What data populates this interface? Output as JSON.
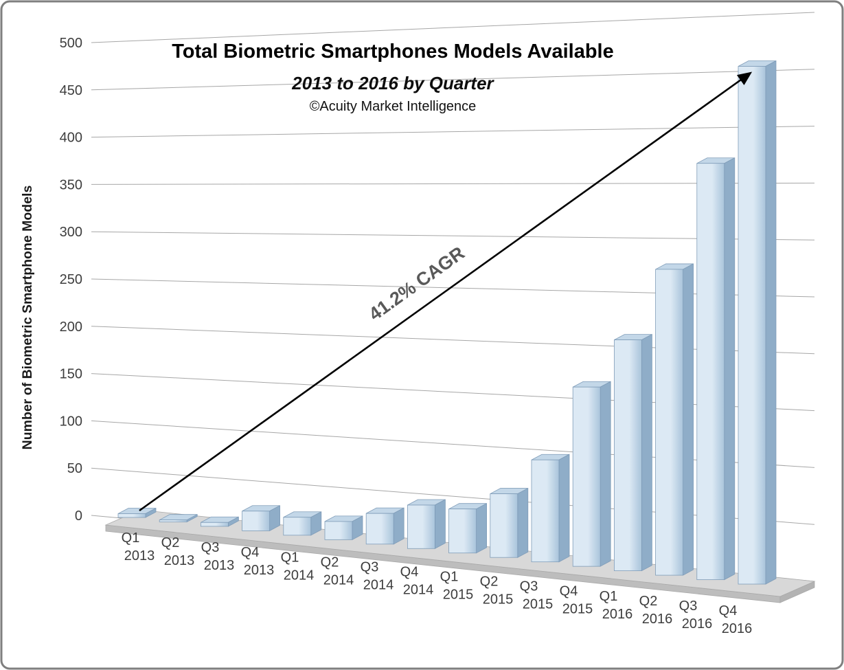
{
  "chart_data": {
    "type": "bar",
    "projection": "3d",
    "title": "Total Biometric Smartphones Models Available",
    "subtitle": "2013 to 2016 by Quarter",
    "attribution": "©Acuity Market Intelligence",
    "ylabel": "Number of Biometric Smartphone Models",
    "xlabel": "",
    "ylim": [
      0,
      500
    ],
    "ytick_interval": 50,
    "yticks": [
      0,
      50,
      100,
      150,
      200,
      250,
      300,
      350,
      400,
      450,
      500
    ],
    "grid": true,
    "legend": false,
    "categories": [
      "Q1 2013",
      "Q2 2013",
      "Q3 2013",
      "Q4 2013",
      "Q1 2014",
      "Q2 2014",
      "Q3 2014",
      "Q4 2014",
      "Q1 2015",
      "Q2 2015",
      "Q3 2015",
      "Q4 2015",
      "Q1 2016",
      "Q2 2016",
      "Q3 2016",
      "Q4 2016"
    ],
    "values": [
      4,
      2,
      4,
      20,
      18,
      18,
      30,
      42,
      42,
      60,
      95,
      165,
      210,
      275,
      370,
      455
    ],
    "annotation": {
      "text": "41.2% CAGR"
    },
    "colors": {
      "bar_front_light": "#dce9f4",
      "bar_front_dark": "#a9c4db",
      "bar_side": "#8fadc8",
      "bar_top": "#c3d7e8",
      "bar_stroke": "#7f9cb8",
      "floor_top": "#d8d8d8",
      "floor_front": "#bdbdbd",
      "floor_side": "#b3b3b3",
      "floor_stroke": "#a9a9a9",
      "gridline": "#a6a6a6",
      "arrow": "#000000",
      "annotation_text": "#595959",
      "text": "#3d3d3d",
      "frame_border": "#7f7f7f"
    }
  }
}
